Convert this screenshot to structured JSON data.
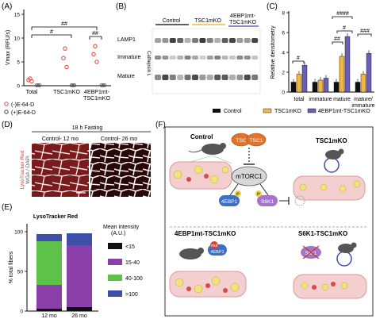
{
  "panels": {
    "A": "(A)",
    "B": "(B)",
    "C": "(C)",
    "D": "(D)",
    "E": "(E)",
    "F": "(F)"
  },
  "panel_a": {
    "ylabel": "Vmax (RFU/s)",
    "yticks": [
      "0",
      "5",
      "10",
      "15"
    ],
    "groups": [
      "Total",
      "TSC1mKO",
      "4EBP1mt-\nTSC1mKO"
    ],
    "sig": [
      "#",
      "##",
      "##"
    ],
    "legend": [
      "(-)E-64-D",
      "(+)E-64-D"
    ],
    "colors": {
      "minus": "#d9413b",
      "plus": "#444444"
    }
  },
  "panel_b": {
    "column_labels": [
      "Control",
      "TSC1mKO",
      "4EBP1mt-\nTSC1mKO"
    ],
    "row_labels": [
      "LAMP1",
      "Immature",
      "Mature"
    ],
    "side_label": "Cathepsin L",
    "underline_colors": [
      "#000000",
      "#f2b642",
      "#6b5fb5"
    ]
  },
  "chart_data": {
    "type": "bar",
    "ylabel": "Relative densitometry",
    "ylim": [
      0,
      8
    ],
    "yticks": [
      "0",
      "2",
      "4",
      "6",
      "8"
    ],
    "categories": [
      "total",
      "immature",
      "mature",
      "mature/\nimmature"
    ],
    "series": [
      {
        "name": "Control",
        "color": "#111111",
        "values": [
          1.0,
          1.0,
          1.0,
          1.0
        ]
      },
      {
        "name": "TSC1mKO",
        "color": "#f2b642",
        "values": [
          1.8,
          1.2,
          3.6,
          1.8
        ]
      },
      {
        "name": "4EBP1mt-TSC1mKO",
        "color": "#6b5fb5",
        "values": [
          2.7,
          1.4,
          5.6,
          3.9
        ]
      }
    ],
    "sig": [
      "#",
      "##",
      "####",
      "#",
      "###"
    ]
  },
  "panel_d": {
    "title": "18 h Fasting",
    "left": "Control- 12 mo",
    "right": "Control- 26 mo",
    "stain_label": [
      "LysoTracker Red",
      "WGA / DAPI"
    ]
  },
  "panel_e": {
    "title": "LysoTracker Red",
    "ylabel": "% total fibers",
    "yticks": [
      "0",
      "50",
      "100"
    ],
    "categories": [
      "12 mo",
      "26 mo"
    ],
    "legend_title": "Mean intensity\n(A.U.)",
    "legend": [
      {
        "label": "<15",
        "color": "#111111"
      },
      {
        "label": "15-40",
        "color": "#8b3fa8"
      },
      {
        "label": "40-100",
        "color": "#5ec14a"
      },
      {
        "label": ">100",
        "color": "#3e4fa8"
      }
    ],
    "stacks": [
      [
        3,
        30,
        55,
        9
      ],
      [
        5,
        78,
        0,
        15
      ]
    ]
  },
  "panel_f": {
    "control": "Control",
    "tsc1mko": "TSC1mKO",
    "fourebp": "4EBP1mt-TSC1mKO",
    "s6k1": "S6K1-TSC1mKO",
    "mtorc1": "mTORC1",
    "tsc": [
      "TSC",
      "TSC1"
    ],
    "ebp1": "4EBP1",
    "s6k": "S6K1",
    "mut": "mut",
    "mut_sub": "4EBP1",
    "p": "P"
  },
  "legend_bottom": [
    "Control",
    "TSC1mKO",
    "4EBP1mt-TSC1mKO"
  ]
}
